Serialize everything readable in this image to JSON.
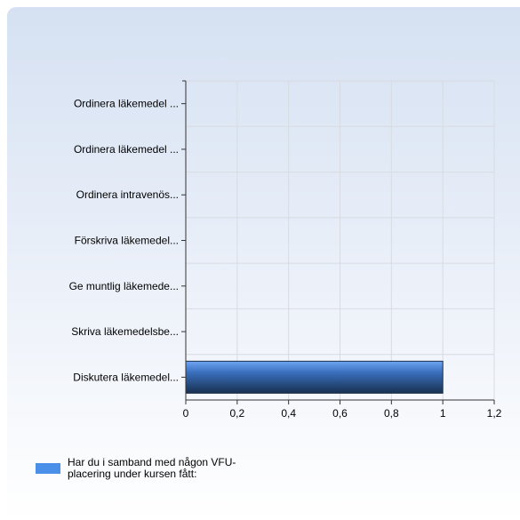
{
  "chart_data": {
    "type": "bar",
    "orientation": "horizontal",
    "categories": [
      "Ordinera läkemedel ...",
      "Ordinera läkemedel ...",
      "Ordinera intravenös...",
      "Förskriva läkemedel...",
      "Ge muntlig läkemede...",
      "Skriva läkemedelsbe...",
      "Diskutera läkemedel..."
    ],
    "series": [
      {
        "name": "Har du i samband med någon VFU-placering under kursen fått:",
        "values": [
          0,
          0,
          0,
          0,
          0,
          0,
          1
        ]
      }
    ],
    "xlim": [
      0,
      1.2
    ],
    "xticks": [
      "0",
      "0,2",
      "0,4",
      "0,6",
      "0,8",
      "1",
      "1,2"
    ],
    "grid": true,
    "legend_position": "bottom-left"
  },
  "colors": {
    "bar_light": "#6ea6f2",
    "bar_mid": "#3a6fbe",
    "bar_dark": "#18304f",
    "legend_swatch": "#4a90e8",
    "grid": "#d8dce2",
    "axis": "#333333"
  }
}
